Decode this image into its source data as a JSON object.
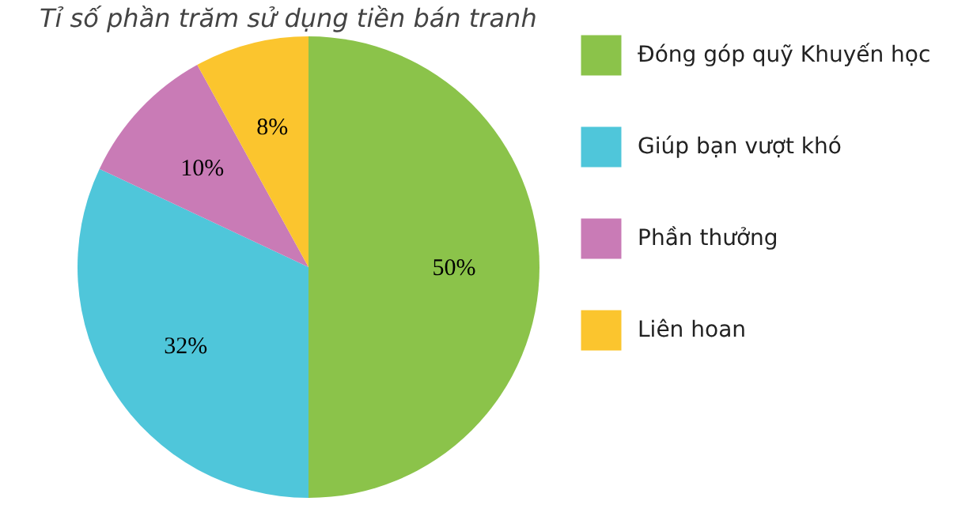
{
  "chart_data": {
    "type": "pie",
    "title": "Tỉ số phần trăm sử dụng tiền bán tranh",
    "categories": [
      "Đóng góp quỹ Khuyến học",
      "Giúp bạn vượt khó",
      "Phần thưởng",
      "Liên hoan"
    ],
    "values": [
      50,
      32,
      10,
      8
    ],
    "colors": [
      "#8bc34a",
      "#4fc6da",
      "#c97bb6",
      "#fbc52e"
    ],
    "value_labels": [
      "50%",
      "32%",
      "10%",
      "8%"
    ],
    "legend": "right"
  }
}
